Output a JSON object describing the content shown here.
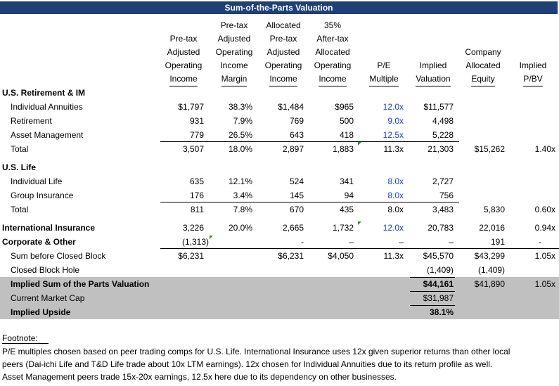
{
  "title": "Sum-of-the-Parts Valuation",
  "headers": {
    "pretax_income": [
      "Pre-tax",
      "Adjusted",
      "Operating",
      "Income"
    ],
    "pretax_margin": [
      "Pre-tax",
      "Adjusted",
      "Operating",
      "Income",
      "Margin"
    ],
    "alloc_pretax": [
      "Allocated",
      "Pre-tax",
      "Adjusted",
      "Operating",
      "Income"
    ],
    "aftertax": [
      "35%",
      "After-tax",
      "Allocated",
      "Operating",
      "Income"
    ],
    "pe": [
      "P/E",
      "Multiple"
    ],
    "implied_val": [
      "Implied",
      "Valuation"
    ],
    "equity": [
      "Company",
      "Allocated",
      "Equity"
    ],
    "pbv": [
      "Implied",
      "P/BV"
    ]
  },
  "sections": {
    "us_ret": "U.S. Retirement & IM",
    "us_life": "U.S. Life"
  },
  "rows": {
    "ind_ann": {
      "label": "Individual Annuities",
      "inc": "$1,797",
      "margin": "38.3%",
      "alloc": "$1,484",
      "after": "$965",
      "pe": "12.0x",
      "val": "$11,577",
      "eq": "",
      "pbv": ""
    },
    "retirement": {
      "label": "Retirement",
      "inc": "931",
      "margin": "7.9%",
      "alloc": "769",
      "after": "500",
      "pe": "9.0x",
      "val": "4,498",
      "eq": "",
      "pbv": ""
    },
    "asset_mgmt": {
      "label": "Asset Management",
      "inc": "779",
      "margin": "26.5%",
      "alloc": "643",
      "after": "418",
      "pe": "12.5x",
      "val": "5,228",
      "eq": "",
      "pbv": ""
    },
    "total1": {
      "label": "Total",
      "inc": "3,507",
      "margin": "18.0%",
      "alloc": "2,897",
      "after": "1,883",
      "pe": "11.3x",
      "val": "21,303",
      "eq": "$15,262",
      "pbv": "1.40x"
    },
    "ind_life": {
      "label": "Individual Life",
      "inc": "635",
      "margin": "12.1%",
      "alloc": "524",
      "after": "341",
      "pe": "8.0x",
      "val": "2,727",
      "eq": "",
      "pbv": ""
    },
    "group_ins": {
      "label": "Group Insurance",
      "inc": "176",
      "margin": "3.4%",
      "alloc": "145",
      "after": "94",
      "pe": "8.0x",
      "val": "756",
      "eq": "",
      "pbv": ""
    },
    "total2": {
      "label": "Total",
      "inc": "811",
      "margin": "7.8%",
      "alloc": "670",
      "after": "435",
      "pe": "8.0x",
      "val": "3,483",
      "eq": "5,830",
      "pbv": "0.60x"
    },
    "intl": {
      "label": "International Insurance",
      "inc": "3,226",
      "margin": "20.0%",
      "alloc": "2,665",
      "after": "1,732",
      "pe": "12.0x",
      "val": "20,783",
      "eq": "22,016",
      "pbv": "0.94x"
    },
    "corp": {
      "label": "Corporate & Other",
      "inc": "(1,313)",
      "margin": "",
      "alloc": "-",
      "after": "–",
      "pe": "–",
      "val": "–",
      "eq": "191",
      "pbv": "-"
    },
    "sum_before": {
      "label": "Sum before Closed Block",
      "inc": "$6,231",
      "margin": "",
      "alloc": "$6,231",
      "after": "$4,050",
      "pe": "11.3x",
      "val": "$45,570",
      "eq": "$43,299",
      "pbv": "1.05x"
    },
    "closed": {
      "label": "Closed Block Hole",
      "val": "(1,409)",
      "eq": "(1,409)"
    },
    "implied_sum": {
      "label": "Implied Sum of the Parts Valuation",
      "val": "$44,161",
      "eq": "$41,890",
      "pbv": "1.05x"
    },
    "mkt_cap": {
      "label": "Current Market Cap",
      "val": "$31,987"
    },
    "upside": {
      "label": "Implied Upside",
      "val": "38.1%"
    }
  },
  "footnote": {
    "heading": "Footnote:",
    "lines": [
      "P/E multiples chosen based on peer trading comps for U.S. Life.  International Insurance uses 12x given superior returns than other local",
      "peers (Dai-ichi Life and T&D Life trade about 10x LTM earnings).  12x chosen for Individual Annuities due to its return profile as well.",
      "Asset Management peers trade 15x-20x earnings, 12.5x here due to its dependency on other businesses."
    ]
  },
  "colors": {
    "title_bg": "#1f3f77",
    "shade": "#c0c0c0",
    "blue": "#1f3fcc",
    "marker": "#2e8b2e"
  }
}
